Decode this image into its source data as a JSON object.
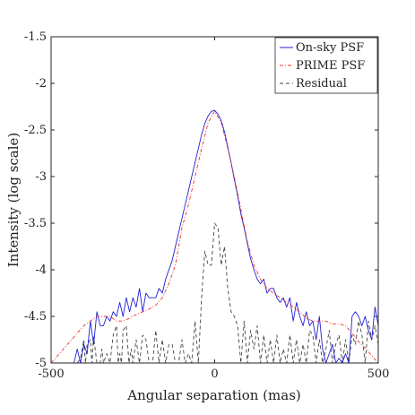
{
  "chart_data": {
    "type": "line",
    "title": "",
    "xlabel": "Angular separation (mas)",
    "ylabel": "Intensity (log scale)",
    "xlim": [
      -500,
      500
    ],
    "ylim": [
      -5,
      -1.5
    ],
    "x_ticks": [
      -500,
      0,
      500
    ],
    "x_tick_labels": [
      "-500",
      "0",
      "500"
    ],
    "y_ticks": [
      -1.5,
      -2,
      -2.5,
      -3,
      -3.5,
      -4,
      -4.5,
      -5
    ],
    "y_tick_labels": [
      "-1.5",
      "-2",
      "-2.5",
      "-3",
      "-3.5",
      "-4",
      "-4.5",
      "-5"
    ],
    "grid": false,
    "legend_position": "top-right",
    "series": [
      {
        "name": "On-sky PSF",
        "color": "#1f1fd6",
        "style": "solid",
        "x": [
          -430,
          -420,
          -410,
          -400,
          -390,
          -380,
          -370,
          -360,
          -350,
          -340,
          -330,
          -320,
          -310,
          -300,
          -290,
          -280,
          -270,
          -260,
          -250,
          -240,
          -230,
          -220,
          -210,
          -200,
          -190,
          -180,
          -170,
          -160,
          -150,
          -140,
          -130,
          -120,
          -110,
          -100,
          -90,
          -80,
          -70,
          -60,
          -50,
          -40,
          -30,
          -20,
          -10,
          0,
          10,
          20,
          30,
          40,
          50,
          60,
          70,
          80,
          90,
          100,
          110,
          120,
          130,
          140,
          150,
          160,
          170,
          180,
          190,
          200,
          210,
          220,
          230,
          240,
          250,
          260,
          270,
          280,
          290,
          300,
          310,
          320,
          330,
          340,
          350,
          360,
          370,
          380,
          390,
          400,
          410,
          420,
          430,
          440,
          450,
          460,
          470,
          480,
          490,
          500
        ],
        "y": [
          -5.0,
          -4.85,
          -5.0,
          -4.8,
          -4.9,
          -4.55,
          -4.8,
          -4.45,
          -4.6,
          -4.6,
          -4.5,
          -4.55,
          -4.45,
          -4.5,
          -4.35,
          -4.5,
          -4.3,
          -4.45,
          -4.3,
          -4.4,
          -4.2,
          -4.45,
          -4.25,
          -4.3,
          -4.3,
          -4.3,
          -4.2,
          -4.25,
          -4.1,
          -4.0,
          -3.9,
          -3.75,
          -3.6,
          -3.45,
          -3.3,
          -3.15,
          -3.0,
          -2.85,
          -2.7,
          -2.55,
          -2.43,
          -2.35,
          -2.3,
          -2.29,
          -2.33,
          -2.4,
          -2.52,
          -2.68,
          -2.85,
          -3.03,
          -3.2,
          -3.4,
          -3.55,
          -3.72,
          -3.88,
          -4.0,
          -4.1,
          -4.15,
          -4.1,
          -4.25,
          -4.2,
          -4.2,
          -4.3,
          -4.35,
          -4.3,
          -4.4,
          -4.3,
          -4.55,
          -4.35,
          -4.5,
          -4.6,
          -4.45,
          -4.6,
          -4.55,
          -4.75,
          -4.5,
          -4.85,
          -5.0,
          -4.9,
          -4.8,
          -5.0,
          -4.95,
          -5.0,
          -4.9,
          -5.0,
          -4.5,
          -4.45,
          -4.5,
          -4.6,
          -4.5,
          -4.65,
          -4.75,
          -4.4,
          -4.6
        ]
      },
      {
        "name": "PRIME PSF",
        "color": "#e8342a",
        "style": "dash-dot",
        "x": [
          -500,
          -450,
          -400,
          -360,
          -320,
          -300,
          -280,
          -260,
          -240,
          -220,
          -200,
          -180,
          -160,
          -140,
          -120,
          -100,
          -80,
          -60,
          -40,
          -20,
          0,
          20,
          40,
          60,
          80,
          100,
          120,
          140,
          160,
          180,
          200,
          220,
          240,
          260,
          280,
          300,
          320,
          340,
          360,
          380,
          400,
          420,
          440,
          460,
          480,
          500
        ],
        "y": [
          -5.0,
          -4.8,
          -4.6,
          -4.5,
          -4.5,
          -4.55,
          -4.55,
          -4.52,
          -4.48,
          -4.45,
          -4.42,
          -4.38,
          -4.3,
          -4.15,
          -3.95,
          -3.55,
          -3.3,
          -3.0,
          -2.7,
          -2.42,
          -2.3,
          -2.42,
          -2.7,
          -3.0,
          -3.35,
          -3.7,
          -3.95,
          -4.1,
          -4.2,
          -4.25,
          -4.3,
          -4.35,
          -4.4,
          -4.45,
          -4.52,
          -4.55,
          -4.55,
          -4.55,
          -4.58,
          -4.58,
          -4.6,
          -4.68,
          -4.77,
          -4.84,
          -4.92,
          -5.0
        ]
      },
      {
        "name": "Residual",
        "color": "#444444",
        "style": "dashed",
        "x": [
          -420,
          -410,
          -400,
          -395,
          -390,
          -380,
          -375,
          -370,
          -360,
          -350,
          -345,
          -340,
          -330,
          -320,
          -310,
          -300,
          -295,
          -290,
          -285,
          -280,
          -270,
          -262,
          -255,
          -250,
          -240,
          -230,
          -220,
          -210,
          -200,
          -190,
          -180,
          -170,
          -160,
          -150,
          -140,
          -130,
          -120,
          -110,
          -100,
          -90,
          -80,
          -70,
          -60,
          -50,
          -40,
          -30,
          -20,
          -10,
          0,
          10,
          20,
          30,
          40,
          50,
          60,
          70,
          80,
          90,
          100,
          110,
          120,
          130,
          140,
          150,
          160,
          170,
          180,
          190,
          200,
          210,
          220,
          230,
          240,
          250,
          260,
          270,
          280,
          290,
          300,
          310,
          320,
          330,
          340,
          350,
          360,
          370,
          380,
          390,
          400,
          410,
          420,
          430,
          440,
          450,
          460,
          470,
          480,
          490,
          500
        ],
        "y": [
          -5.0,
          -4.95,
          -4.75,
          -5.0,
          -4.8,
          -4.75,
          -5.0,
          -4.72,
          -5.0,
          -5.0,
          -4.85,
          -5.0,
          -4.9,
          -5.0,
          -4.7,
          -4.6,
          -5.0,
          -4.9,
          -5.0,
          -4.65,
          -4.6,
          -5.0,
          -4.85,
          -5.0,
          -4.75,
          -5.0,
          -4.7,
          -4.75,
          -5.0,
          -5.0,
          -4.65,
          -5.0,
          -4.75,
          -5.0,
          -4.8,
          -4.8,
          -5.0,
          -5.0,
          -4.75,
          -5.0,
          -4.9,
          -5.0,
          -4.55,
          -5.0,
          -4.3,
          -3.8,
          -3.95,
          -3.95,
          -3.5,
          -3.55,
          -3.95,
          -3.75,
          -4.2,
          -4.45,
          -4.5,
          -4.6,
          -5.0,
          -4.55,
          -5.0,
          -4.65,
          -4.85,
          -4.6,
          -5.0,
          -4.7,
          -5.0,
          -4.75,
          -5.0,
          -4.7,
          -5.0,
          -4.85,
          -5.0,
          -4.7,
          -5.0,
          -4.75,
          -5.0,
          -4.8,
          -5.0,
          -4.65,
          -4.7,
          -5.0,
          -4.75,
          -5.0,
          -4.85,
          -4.65,
          -5.0,
          -4.8,
          -4.7,
          -5.0,
          -4.75,
          -5.0,
          -4.7,
          -4.8,
          -4.55,
          -4.7,
          -5.0,
          -4.55,
          -4.75,
          -4.6,
          -4.8
        ]
      }
    ]
  }
}
